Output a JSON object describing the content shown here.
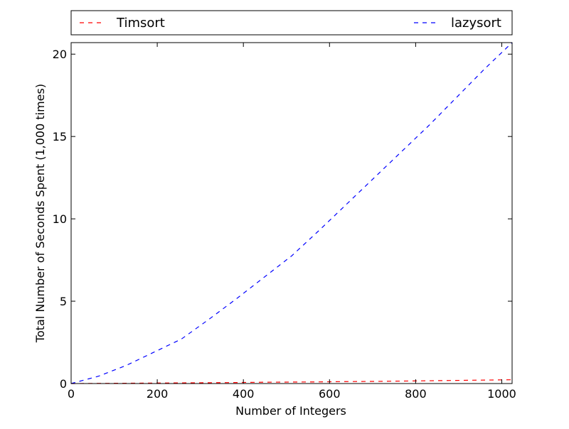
{
  "chart_data": {
    "type": "line",
    "title": "",
    "xlabel": "Number of Integers",
    "ylabel": "Total Number of Seconds Spent (1,000 times)",
    "xlim": [
      0,
      1024
    ],
    "ylim": [
      0,
      20.7
    ],
    "x_ticks": [
      0,
      200,
      400,
      600,
      800,
      1000
    ],
    "y_ticks": [
      0,
      5,
      10,
      15,
      20
    ],
    "grid": false,
    "legend": {
      "placement": "top, above plot, expanded",
      "entries": [
        "Timsort",
        "lazysort"
      ]
    },
    "series": [
      {
        "name": "Timsort",
        "color": "#ff0000",
        "style": "dashed",
        "points": [
          [
            0,
            0.0
          ],
          [
            64,
            0.01
          ],
          [
            128,
            0.02
          ],
          [
            192,
            0.03
          ],
          [
            256,
            0.04
          ],
          [
            320,
            0.05
          ],
          [
            384,
            0.06
          ],
          [
            448,
            0.08
          ],
          [
            512,
            0.09
          ],
          [
            576,
            0.1
          ],
          [
            640,
            0.12
          ],
          [
            704,
            0.13
          ],
          [
            768,
            0.15
          ],
          [
            832,
            0.17
          ],
          [
            896,
            0.19
          ],
          [
            960,
            0.21
          ],
          [
            1024,
            0.23
          ]
        ]
      },
      {
        "name": "lazysort",
        "color": "#0000ff",
        "style": "dashed",
        "points": [
          [
            0,
            0.0
          ],
          [
            64,
            0.45
          ],
          [
            128,
            1.1
          ],
          [
            192,
            1.9
          ],
          [
            256,
            2.7
          ],
          [
            320,
            3.9
          ],
          [
            384,
            5.15
          ],
          [
            448,
            6.45
          ],
          [
            512,
            7.75
          ],
          [
            576,
            9.3
          ],
          [
            640,
            10.9
          ],
          [
            704,
            12.5
          ],
          [
            768,
            14.1
          ],
          [
            832,
            15.7
          ],
          [
            896,
            17.4
          ],
          [
            960,
            19.1
          ],
          [
            1024,
            20.7
          ]
        ]
      }
    ]
  }
}
